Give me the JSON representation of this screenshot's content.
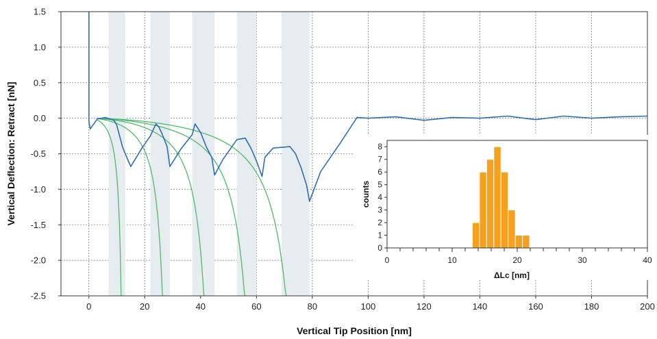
{
  "chart_data": [
    {
      "type": "line",
      "xlabel": "Vertical Tip Position [nm]",
      "ylabel": "Vertical Deflection: Retract [nN]",
      "xlim": [
        -10,
        200
      ],
      "ylim": [
        -2.5,
        1.5
      ],
      "xticks": [
        0,
        20,
        40,
        60,
        80,
        100,
        120,
        140,
        160,
        180,
        200
      ],
      "yticks": [
        -2.5,
        -2.0,
        -1.5,
        -1.0,
        -0.5,
        0.0,
        0.5,
        1.0,
        1.5
      ],
      "xtick_labels": [
        "0",
        "20",
        "40",
        "60",
        "80",
        "100",
        "120",
        "140",
        "160",
        "180",
        "200"
      ],
      "ytick_labels": [
        "-2.5",
        "-2.0",
        "-1.5",
        "-1.0",
        "-0.5",
        "0.0",
        "0.5",
        "1.0",
        "1.5"
      ],
      "grid": true,
      "colors": {
        "trace": "#2a6fb5",
        "fit": "#4dbb6a",
        "band": "#e6ecef"
      },
      "shaded_bands": [
        [
          7,
          13
        ],
        [
          22,
          29
        ],
        [
          37,
          45
        ],
        [
          53,
          60
        ],
        [
          69,
          79
        ]
      ],
      "series": [
        {
          "kind": "trace",
          "x": [
            0,
            0,
            0,
            0,
            0.5,
            3,
            6,
            9,
            10,
            11,
            12,
            13,
            15,
            19,
            22,
            24,
            25,
            26,
            28,
            29,
            33,
            37,
            38,
            40,
            42,
            44,
            45,
            48,
            53,
            56,
            58,
            60,
            62,
            63,
            66,
            72,
            74,
            76,
            78,
            79,
            83,
            90,
            96,
            100,
            110,
            120,
            130,
            140,
            150,
            160,
            170,
            180,
            190,
            200
          ],
          "y": [
            1.5,
            1.1,
            0.5,
            -0.05,
            -0.15,
            -0.01,
            0.01,
            -0.03,
            -0.1,
            -0.25,
            -0.4,
            -0.5,
            -0.68,
            -0.42,
            -0.25,
            -0.08,
            -0.12,
            -0.2,
            -0.4,
            -0.68,
            -0.43,
            -0.23,
            -0.08,
            -0.2,
            -0.4,
            -0.55,
            -0.8,
            -0.58,
            -0.3,
            -0.28,
            -0.42,
            -0.6,
            -0.82,
            -0.55,
            -0.42,
            -0.4,
            -0.5,
            -0.7,
            -0.95,
            -1.17,
            -0.75,
            -0.35,
            0.01,
            0.0,
            0.02,
            -0.03,
            0.01,
            0.0,
            0.03,
            -0.02,
            0.03,
            0.0,
            0.02,
            0.03
          ]
        },
        {
          "kind": "fit",
          "lc": 13.5,
          "dip": 0.3
        },
        {
          "kind": "fit",
          "lc": 30.8,
          "dip": 0.3
        },
        {
          "kind": "fit",
          "lc": 48.2,
          "dip": 0.3
        },
        {
          "kind": "fit",
          "lc": 65.3,
          "dip": 0.3
        },
        {
          "kind": "fit",
          "lc": 82.6,
          "dip": 0.3
        }
      ]
    },
    {
      "type": "bar",
      "xlabel": "ΔLc [nm]",
      "ylabel": "counts",
      "xlim": [
        0,
        40
      ],
      "ylim": [
        0,
        8.5
      ],
      "xticks": [
        0,
        10,
        20,
        30,
        40
      ],
      "xtick_labels": [
        "0",
        "10",
        "20",
        "30",
        "40"
      ],
      "yticks": [
        0,
        1,
        2,
        3,
        4,
        5,
        6,
        7,
        8
      ],
      "ytick_labels": [
        "0",
        "1",
        "2",
        "3",
        "4",
        "5",
        "6",
        "7",
        "8"
      ],
      "bin_width": 1.1,
      "bin_start": 13.1,
      "values": [
        2,
        6,
        7,
        8,
        6,
        3,
        1,
        1
      ],
      "color": "#f6a01e"
    }
  ]
}
